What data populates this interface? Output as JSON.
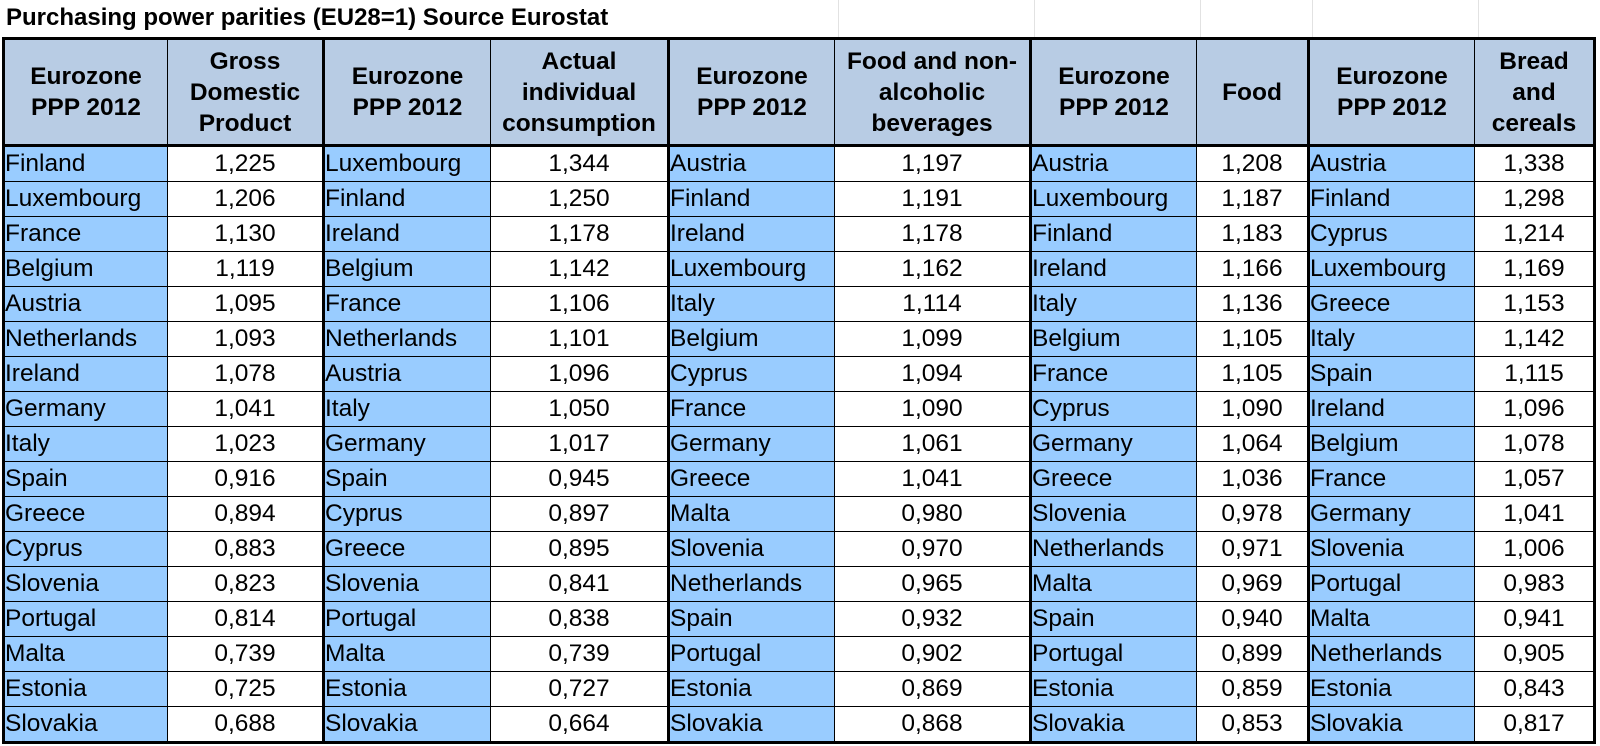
{
  "title": "Purchasing power parities (EU28=1) Source Eurostat",
  "groups": [
    {
      "country_header": "Eurozone PPP 2012",
      "value_header": "Gross Domestic Product",
      "rows": [
        {
          "country": "Finland",
          "value": "1,225"
        },
        {
          "country": "Luxembourg",
          "value": "1,206"
        },
        {
          "country": "France",
          "value": "1,130"
        },
        {
          "country": "Belgium",
          "value": "1,119"
        },
        {
          "country": "Austria",
          "value": "1,095"
        },
        {
          "country": "Netherlands",
          "value": "1,093"
        },
        {
          "country": "Ireland",
          "value": "1,078"
        },
        {
          "country": "Germany",
          "value": "1,041"
        },
        {
          "country": "Italy",
          "value": "1,023"
        },
        {
          "country": "Spain",
          "value": "0,916"
        },
        {
          "country": "Greece",
          "value": "0,894"
        },
        {
          "country": "Cyprus",
          "value": "0,883"
        },
        {
          "country": "Slovenia",
          "value": "0,823"
        },
        {
          "country": "Portugal",
          "value": "0,814"
        },
        {
          "country": "Malta",
          "value": "0,739"
        },
        {
          "country": "Estonia",
          "value": "0,725"
        },
        {
          "country": "Slovakia",
          "value": "0,688"
        }
      ]
    },
    {
      "country_header": "Eurozone PPP 2012",
      "value_header": "Actual individual consumption",
      "rows": [
        {
          "country": "Luxembourg",
          "value": "1,344"
        },
        {
          "country": "Finland",
          "value": "1,250"
        },
        {
          "country": "Ireland",
          "value": "1,178"
        },
        {
          "country": "Belgium",
          "value": "1,142"
        },
        {
          "country": "France",
          "value": "1,106"
        },
        {
          "country": "Netherlands",
          "value": "1,101"
        },
        {
          "country": "Austria",
          "value": "1,096"
        },
        {
          "country": "Italy",
          "value": "1,050"
        },
        {
          "country": "Germany",
          "value": "1,017"
        },
        {
          "country": "Spain",
          "value": "0,945"
        },
        {
          "country": "Cyprus",
          "value": "0,897"
        },
        {
          "country": "Greece",
          "value": "0,895"
        },
        {
          "country": "Slovenia",
          "value": "0,841"
        },
        {
          "country": "Portugal",
          "value": "0,838"
        },
        {
          "country": "Malta",
          "value": "0,739"
        },
        {
          "country": "Estonia",
          "value": "0,727"
        },
        {
          "country": "Slovakia",
          "value": "0,664"
        }
      ]
    },
    {
      "country_header": "Eurozone PPP 2012",
      "value_header": "Food and non-alcoholic beverages",
      "rows": [
        {
          "country": "Austria",
          "value": "1,197"
        },
        {
          "country": "Finland",
          "value": "1,191"
        },
        {
          "country": "Ireland",
          "value": "1,178"
        },
        {
          "country": "Luxembourg",
          "value": "1,162"
        },
        {
          "country": "Italy",
          "value": "1,114"
        },
        {
          "country": "Belgium",
          "value": "1,099"
        },
        {
          "country": "Cyprus",
          "value": "1,094"
        },
        {
          "country": "France",
          "value": "1,090"
        },
        {
          "country": "Germany",
          "value": "1,061"
        },
        {
          "country": "Greece",
          "value": "1,041"
        },
        {
          "country": "Malta",
          "value": "0,980"
        },
        {
          "country": "Slovenia",
          "value": "0,970"
        },
        {
          "country": "Netherlands",
          "value": "0,965"
        },
        {
          "country": "Spain",
          "value": "0,932"
        },
        {
          "country": "Portugal",
          "value": "0,902"
        },
        {
          "country": "Estonia",
          "value": "0,869"
        },
        {
          "country": "Slovakia",
          "value": "0,868"
        }
      ]
    },
    {
      "country_header": "Eurozone PPP 2012",
      "value_header": "Food",
      "rows": [
        {
          "country": "Austria",
          "value": "1,208"
        },
        {
          "country": "Luxembourg",
          "value": "1,187"
        },
        {
          "country": "Finland",
          "value": "1,183"
        },
        {
          "country": "Ireland",
          "value": "1,166"
        },
        {
          "country": "Italy",
          "value": "1,136"
        },
        {
          "country": "Belgium",
          "value": "1,105"
        },
        {
          "country": "France",
          "value": "1,105"
        },
        {
          "country": "Cyprus",
          "value": "1,090"
        },
        {
          "country": "Germany",
          "value": "1,064"
        },
        {
          "country": "Greece",
          "value": "1,036"
        },
        {
          "country": "Slovenia",
          "value": "0,978"
        },
        {
          "country": "Netherlands",
          "value": "0,971"
        },
        {
          "country": "Malta",
          "value": "0,969"
        },
        {
          "country": "Spain",
          "value": "0,940"
        },
        {
          "country": "Portugal",
          "value": "0,899"
        },
        {
          "country": "Estonia",
          "value": "0,859"
        },
        {
          "country": "Slovakia",
          "value": "0,853"
        }
      ]
    },
    {
      "country_header": "Eurozone PPP 2012",
      "value_header": "Bread and cereals",
      "rows": [
        {
          "country": "Austria",
          "value": "1,338"
        },
        {
          "country": "Finland",
          "value": "1,298"
        },
        {
          "country": "Cyprus",
          "value": "1,214"
        },
        {
          "country": "Luxembourg",
          "value": "1,169"
        },
        {
          "country": "Greece",
          "value": "1,153"
        },
        {
          "country": "Italy",
          "value": "1,142"
        },
        {
          "country": "Spain",
          "value": "1,115"
        },
        {
          "country": "Ireland",
          "value": "1,096"
        },
        {
          "country": "Belgium",
          "value": "1,078"
        },
        {
          "country": "France",
          "value": "1,057"
        },
        {
          "country": "Germany",
          "value": "1,041"
        },
        {
          "country": "Slovenia",
          "value": "1,006"
        },
        {
          "country": "Portugal",
          "value": "0,983"
        },
        {
          "country": "Malta",
          "value": "0,941"
        },
        {
          "country": "Netherlands",
          "value": "0,905"
        },
        {
          "country": "Estonia",
          "value": "0,843"
        },
        {
          "country": "Slovakia",
          "value": "0,817"
        }
      ]
    }
  ],
  "colors": {
    "header_bg": "#b8cce4",
    "country_cell_bg": "#99ccff",
    "value_cell_bg": "#ffffff",
    "border": "#000000"
  }
}
